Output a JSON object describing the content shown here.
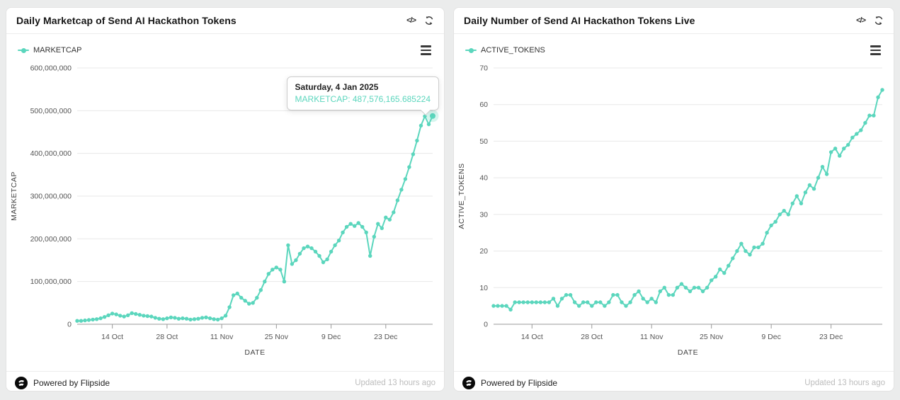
{
  "page": {
    "background_color": "#ebecec"
  },
  "colors": {
    "accent": "#5bd6bd",
    "grid": "#e8e8e8",
    "axis_line": "#999999",
    "tick_label": "#555555",
    "title": "#161616",
    "updated": "#bdbdbd"
  },
  "panels": [
    {
      "title": "Daily Marketcap of Send AI Hackathon Tokens",
      "toolbar_icons": [
        "code-icon",
        "refresh-icon"
      ],
      "legend": {
        "label": "MARKETCAP",
        "marker_color": "#5bd6bd"
      },
      "menu_icon": "hamburger-icon",
      "tooltip": {
        "title": "Saturday, 4 Jan 2025",
        "value": "MARKETCAP: 487,576,165.685224"
      },
      "footer": {
        "powered_by": "Powered by Flipside",
        "updated": "Updated 13 hours ago"
      }
    },
    {
      "title": "Daily Number of Send AI Hackathon Tokens Live",
      "toolbar_icons": [
        "code-icon",
        "refresh-icon"
      ],
      "legend": {
        "label": "ACTIVE_TOKENS",
        "marker_color": "#5bd6bd"
      },
      "menu_icon": "hamburger-icon",
      "footer": {
        "powered_by": "Powered by Flipside",
        "updated": "Updated 13 hours ago"
      }
    }
  ],
  "chart_data": [
    {
      "type": "line",
      "title": "Daily Marketcap of Send AI Hackathon Tokens",
      "xlabel": "DATE",
      "ylabel": "MARKETCAP",
      "color": "#5bd6bd",
      "grid": "horizontal",
      "legend_position": "top-left",
      "value_multiplier": 1000000,
      "ylim": [
        0,
        600
      ],
      "y_ticks": [
        {
          "value": 0,
          "label": "0"
        },
        {
          "value": 100,
          "label": "100,000,000"
        },
        {
          "value": 200,
          "label": "200,000,000"
        },
        {
          "value": 300,
          "label": "300,000,000"
        },
        {
          "value": 400,
          "label": "400,000,000"
        },
        {
          "value": 500,
          "label": "500,000,000"
        },
        {
          "value": 600,
          "label": "600,000,000"
        }
      ],
      "x_ticks": [
        {
          "index": 9,
          "label": "14 Oct"
        },
        {
          "index": 23,
          "label": "28 Oct"
        },
        {
          "index": 37,
          "label": "11 Nov"
        },
        {
          "index": 51,
          "label": "25 Nov"
        },
        {
          "index": 65,
          "label": "9 Dec"
        },
        {
          "index": 79,
          "label": "23 Dec"
        }
      ],
      "highlight_last_point": true,
      "last_point": {
        "date": "Saturday, 4 Jan 2025",
        "value": 487576165.685224
      },
      "series": [
        {
          "name": "MARKETCAP",
          "unit": "millions",
          "values": [
            8,
            8,
            9,
            10,
            11,
            12,
            14,
            17,
            21,
            25,
            23,
            20,
            18,
            21,
            26,
            24,
            22,
            20,
            19,
            18,
            15,
            13,
            12,
            14,
            16,
            15,
            13,
            14,
            13,
            11,
            12,
            13,
            15,
            16,
            14,
            12,
            11,
            14,
            20,
            40,
            68,
            72,
            62,
            55,
            48,
            50,
            62,
            80,
            100,
            118,
            128,
            133,
            128,
            100,
            185,
            141,
            150,
            165,
            178,
            182,
            178,
            170,
            160,
            145,
            152,
            170,
            185,
            196,
            215,
            228,
            235,
            230,
            237,
            228,
            215,
            160,
            205,
            235,
            225,
            250,
            245,
            262,
            290,
            315,
            340,
            368,
            398,
            430,
            465,
            487,
            468,
            487.576165685224
          ]
        }
      ]
    },
    {
      "type": "line",
      "title": "Daily Number of Send AI Hackathon Tokens Live",
      "xlabel": "DATE",
      "ylabel": "ACTIVE_TOKENS",
      "color": "#5bd6bd",
      "grid": "horizontal",
      "legend_position": "top-left",
      "value_multiplier": 1,
      "ylim": [
        0,
        70
      ],
      "y_ticks": [
        {
          "value": 0,
          "label": "0"
        },
        {
          "value": 10,
          "label": "10"
        },
        {
          "value": 20,
          "label": "20"
        },
        {
          "value": 30,
          "label": "30"
        },
        {
          "value": 40,
          "label": "40"
        },
        {
          "value": 50,
          "label": "50"
        },
        {
          "value": 60,
          "label": "60"
        },
        {
          "value": 70,
          "label": "70"
        }
      ],
      "x_ticks": [
        {
          "index": 9,
          "label": "14 Oct"
        },
        {
          "index": 23,
          "label": "28 Oct"
        },
        {
          "index": 37,
          "label": "11 Nov"
        },
        {
          "index": 51,
          "label": "25 Nov"
        },
        {
          "index": 65,
          "label": "9 Dec"
        },
        {
          "index": 79,
          "label": "23 Dec"
        }
      ],
      "highlight_last_point": false,
      "series": [
        {
          "name": "ACTIVE_TOKENS",
          "unit": "tokens",
          "values": [
            5,
            5,
            5,
            5,
            4,
            6,
            6,
            6,
            6,
            6,
            6,
            6,
            6,
            6,
            7,
            5,
            7,
            8,
            8,
            6,
            5,
            6,
            6,
            5,
            6,
            6,
            5,
            6,
            8,
            8,
            6,
            5,
            6,
            8,
            9,
            7,
            6,
            7,
            6,
            9,
            10,
            8,
            8,
            10,
            11,
            10,
            9,
            10,
            10,
            9,
            10,
            12,
            13,
            15,
            14,
            16,
            18,
            20,
            22,
            20,
            19,
            21,
            21,
            22,
            25,
            27,
            28,
            30,
            31,
            30,
            33,
            35,
            33,
            36,
            38,
            37,
            40,
            43,
            41,
            47,
            48,
            46,
            48,
            49,
            51,
            52,
            53,
            55,
            57,
            57,
            62,
            64
          ]
        }
      ]
    }
  ]
}
